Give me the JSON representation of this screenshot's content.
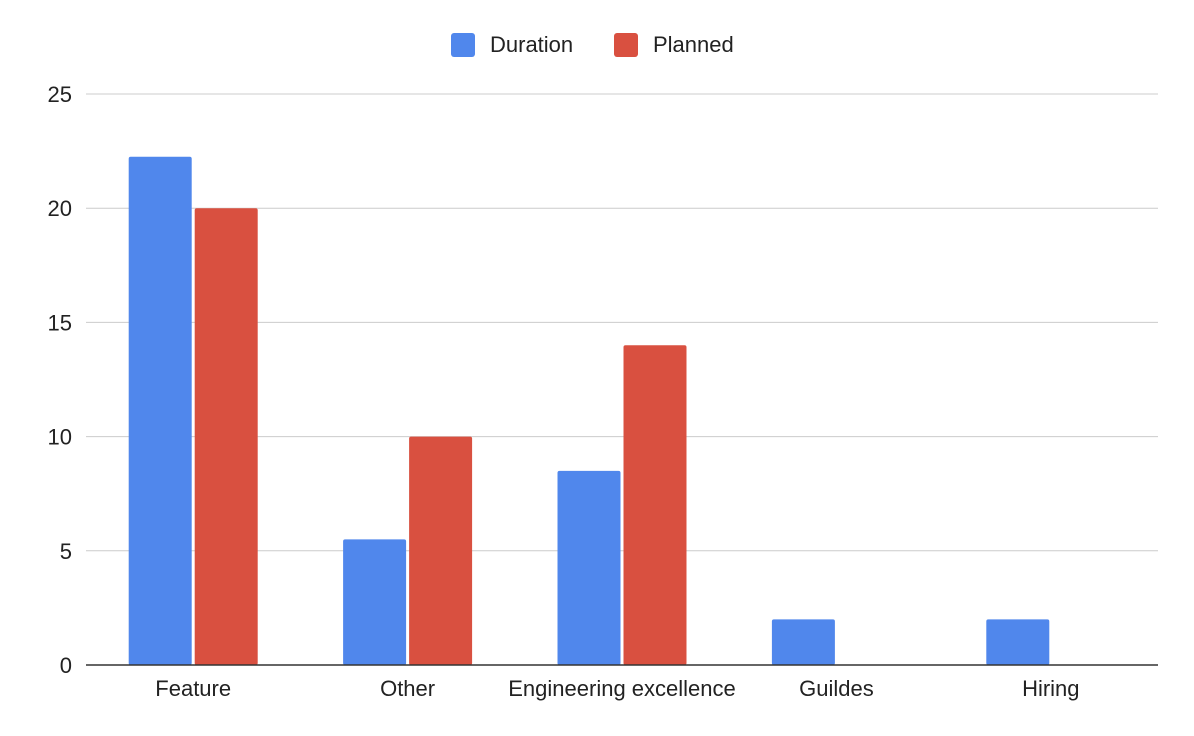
{
  "chart_data": {
    "type": "bar",
    "title": "",
    "xlabel": "",
    "ylabel": "",
    "categories": [
      "Feature",
      "Other",
      "Engineering excellence",
      "Guildes",
      "Hiring"
    ],
    "series": [
      {
        "name": "Duration",
        "color": "#5087ec",
        "values": [
          22.25,
          5.5,
          8.5,
          2,
          2
        ]
      },
      {
        "name": "Planned",
        "color": "#d95040",
        "values": [
          20,
          10,
          14,
          0,
          0
        ]
      }
    ],
    "ylim": [
      0,
      25
    ],
    "yticks": [
      0,
      5,
      10,
      15,
      20,
      25
    ],
    "grid": true,
    "legend_position": "top-center"
  }
}
